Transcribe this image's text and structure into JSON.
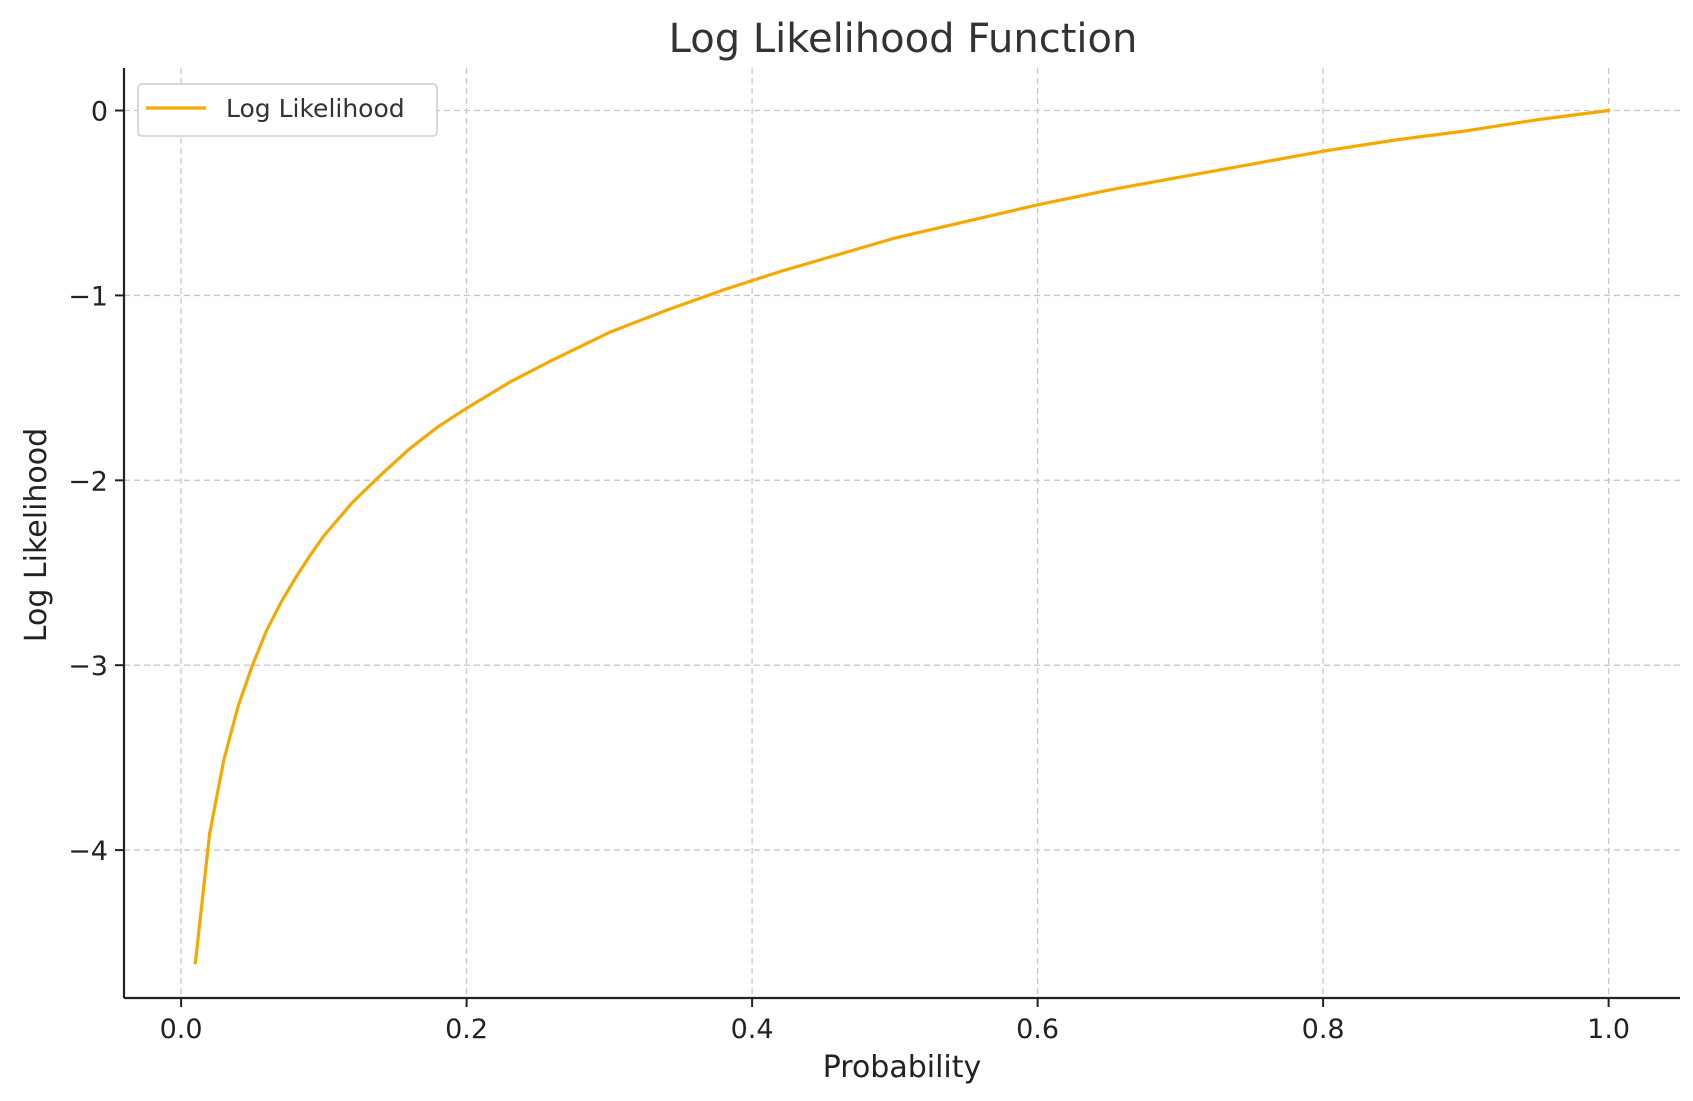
{
  "chart_data": {
    "type": "line",
    "title": "Log Likelihood Function",
    "xlabel": "Probability",
    "ylabel": "Log Likelihood",
    "xlim": [
      -0.04,
      1.05
    ],
    "ylim": [
      -4.8,
      0.23
    ],
    "x_ticks": [
      {
        "value": 0.0,
        "label": "0.0"
      },
      {
        "value": 0.2,
        "label": "0.2"
      },
      {
        "value": 0.4,
        "label": "0.4"
      },
      {
        "value": 0.6,
        "label": "0.6"
      },
      {
        "value": 0.8,
        "label": "0.8"
      },
      {
        "value": 1.0,
        "label": "1.0"
      }
    ],
    "y_ticks": [
      {
        "value": 0,
        "label": "0"
      },
      {
        "value": -1,
        "label": "−1"
      },
      {
        "value": -2,
        "label": "−2"
      },
      {
        "value": -3,
        "label": "−3"
      },
      {
        "value": -4,
        "label": "−4"
      }
    ],
    "grid": true,
    "legend_position": "top-left",
    "series": [
      {
        "name": "Log Likelihood",
        "color": "#f5a800",
        "x": [
          0.01,
          0.02,
          0.03,
          0.04,
          0.05,
          0.06,
          0.07,
          0.08,
          0.09,
          0.1,
          0.12,
          0.14,
          0.16,
          0.18,
          0.2,
          0.23,
          0.26,
          0.3,
          0.34,
          0.38,
          0.42,
          0.46,
          0.5,
          0.55,
          0.6,
          0.65,
          0.7,
          0.75,
          0.8,
          0.85,
          0.9,
          0.95,
          1.0
        ],
        "y": [
          -4.61,
          -3.91,
          -3.51,
          -3.22,
          -3.0,
          -2.81,
          -2.66,
          -2.53,
          -2.41,
          -2.3,
          -2.12,
          -1.97,
          -1.83,
          -1.71,
          -1.61,
          -1.47,
          -1.35,
          -1.2,
          -1.08,
          -0.97,
          -0.87,
          -0.78,
          -0.69,
          -0.6,
          -0.51,
          -0.43,
          -0.36,
          -0.29,
          -0.22,
          -0.16,
          -0.11,
          -0.05,
          0.0
        ]
      }
    ]
  }
}
